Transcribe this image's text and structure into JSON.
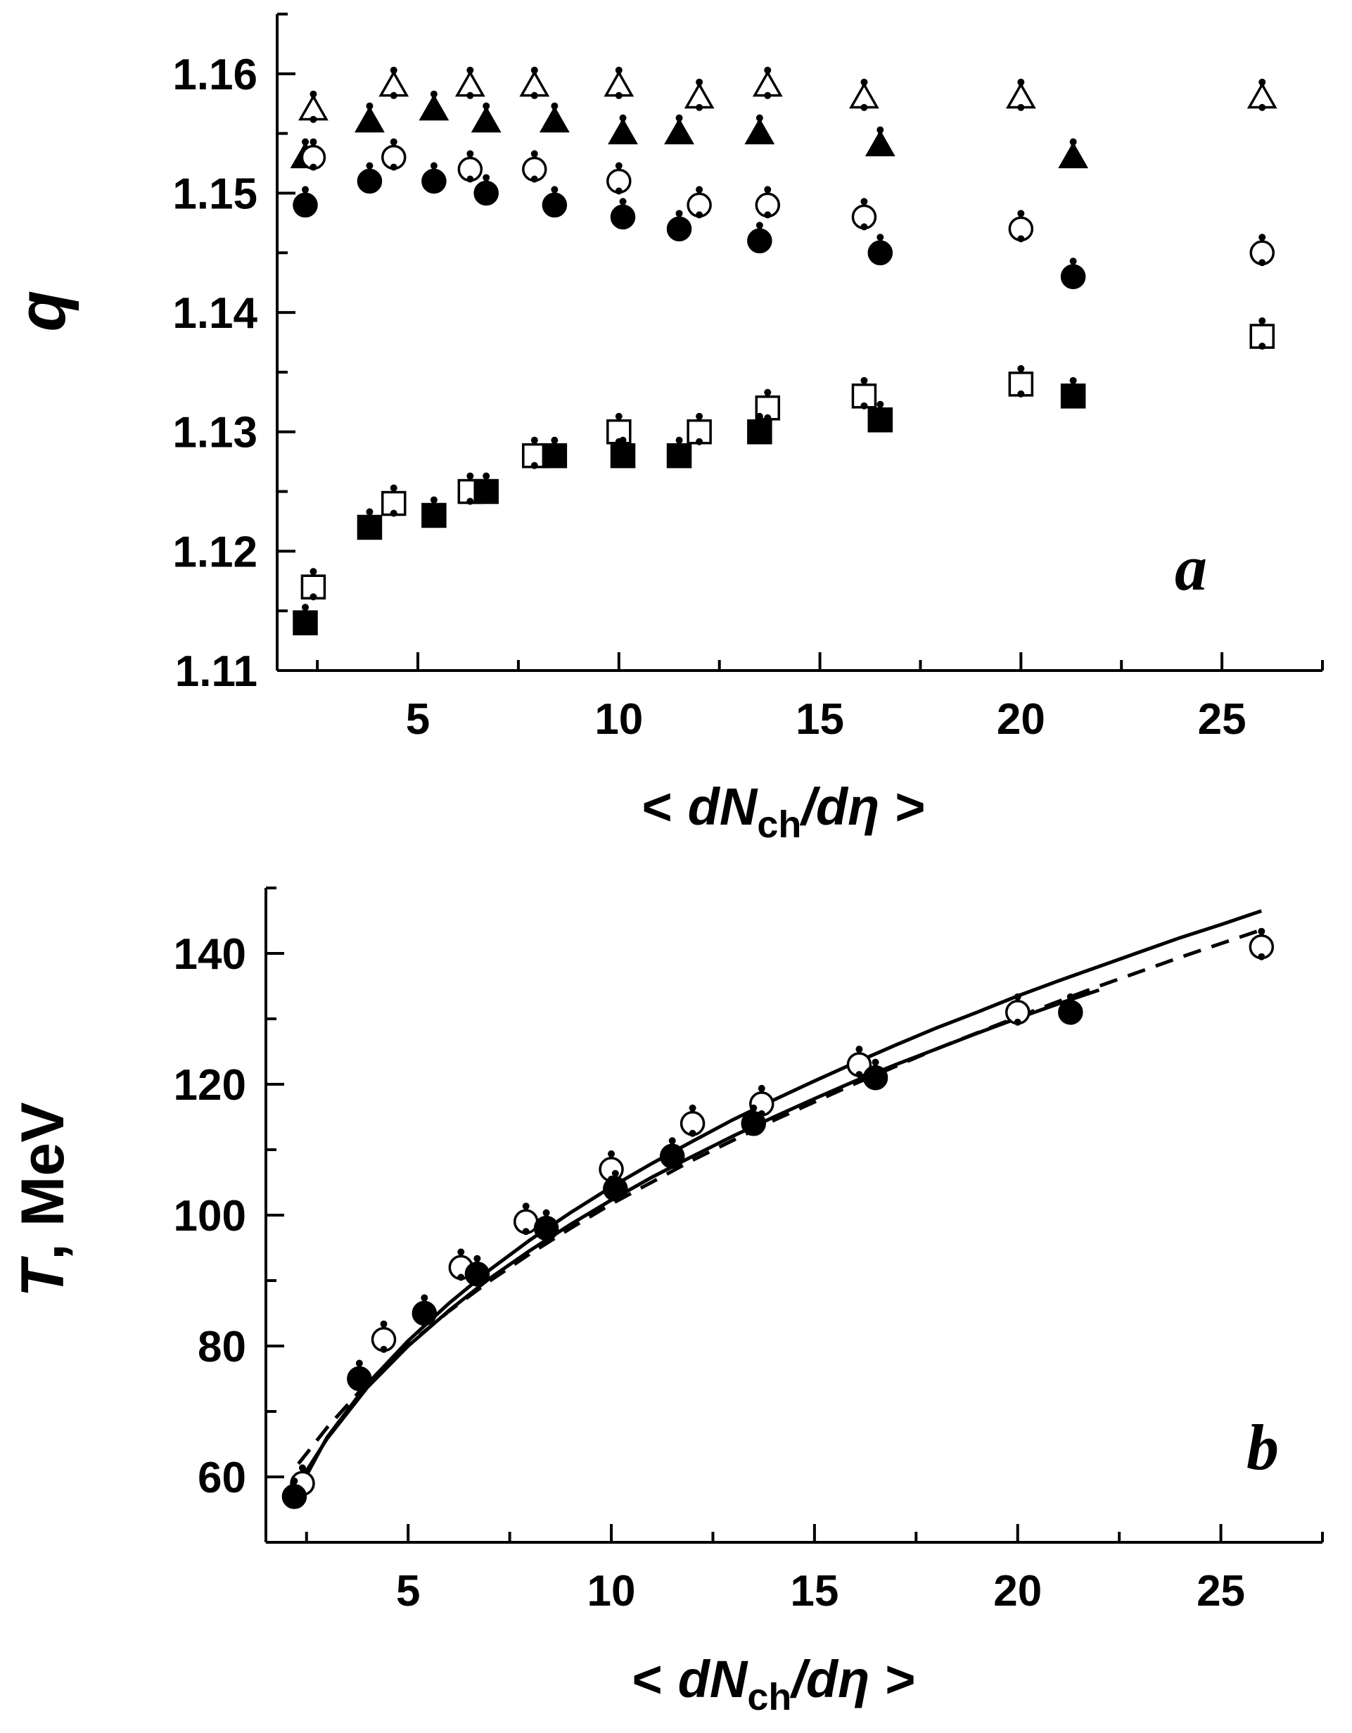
{
  "chart_data": [
    {
      "type": "scatter",
      "panel_label": "a",
      "xlabel": {
        "lt": "<",
        "d1": "d",
        "N": "N",
        "sub": "ch",
        "slash": "/",
        "d2": "d",
        "eta": "η",
        "gt": ">"
      },
      "ylabel": "q",
      "xlim": [
        1.5,
        27.5
      ],
      "ylim": [
        1.11,
        1.165
      ],
      "xticks": [
        "5",
        "10",
        "15",
        "20",
        "25"
      ],
      "yticks": [
        "1.11",
        "1.12",
        "1.13",
        "1.14",
        "1.15",
        "1.16"
      ],
      "series": [
        {
          "name": "open-triangle",
          "marker": "triangle-open",
          "x": [
            2.4,
            4.4,
            6.3,
            7.9,
            10.0,
            12.0,
            13.7,
            16.1,
            20.0,
            26.0
          ],
          "y": [
            1.157,
            1.159,
            1.159,
            1.159,
            1.159,
            1.158,
            1.159,
            1.158,
            1.158,
            1.158
          ]
        },
        {
          "name": "filled-triangle",
          "marker": "triangle-filled",
          "x": [
            2.2,
            3.8,
            5.4,
            6.7,
            8.4,
            10.1,
            11.5,
            13.5,
            16.5,
            21.3
          ],
          "y": [
            1.153,
            1.156,
            1.157,
            1.156,
            1.156,
            1.155,
            1.155,
            1.155,
            1.154,
            1.153
          ]
        },
        {
          "name": "open-circle",
          "marker": "circle-open",
          "x": [
            2.4,
            4.4,
            6.3,
            7.9,
            10.0,
            12.0,
            13.7,
            16.1,
            20.0,
            26.0
          ],
          "y": [
            1.153,
            1.153,
            1.152,
            1.152,
            1.151,
            1.149,
            1.149,
            1.148,
            1.147,
            1.145
          ]
        },
        {
          "name": "filled-circle",
          "marker": "circle-filled",
          "x": [
            2.2,
            3.8,
            5.4,
            6.7,
            8.4,
            10.1,
            11.5,
            13.5,
            16.5,
            21.3
          ],
          "y": [
            1.149,
            1.151,
            1.151,
            1.15,
            1.149,
            1.148,
            1.147,
            1.146,
            1.145,
            1.143
          ]
        },
        {
          "name": "open-square",
          "marker": "square-open",
          "x": [
            2.4,
            4.4,
            6.3,
            7.9,
            10.0,
            12.0,
            13.7,
            16.1,
            20.0,
            26.0
          ],
          "y": [
            1.117,
            1.124,
            1.125,
            1.128,
            1.13,
            1.13,
            1.132,
            1.133,
            1.134,
            1.138
          ]
        },
        {
          "name": "filled-square",
          "marker": "square-filled",
          "x": [
            2.2,
            3.8,
            5.4,
            6.7,
            8.4,
            10.1,
            11.5,
            13.5,
            16.5,
            21.3
          ],
          "y": [
            1.114,
            1.122,
            1.123,
            1.125,
            1.128,
            1.128,
            1.128,
            1.13,
            1.131,
            1.133
          ]
        }
      ]
    },
    {
      "type": "scatter",
      "panel_label": "b",
      "xlabel": {
        "lt": "<",
        "d1": "d",
        "N": "N",
        "sub": "ch",
        "slash": "/",
        "d2": "d",
        "eta": "η",
        "gt": ">"
      },
      "ylabel": {
        "T": "T",
        "rest": ", MeV"
      },
      "xlim": [
        1.5,
        27.5
      ],
      "ylim": [
        50,
        150
      ],
      "xticks": [
        "5",
        "10",
        "15",
        "20",
        "25"
      ],
      "yticks": [
        "60",
        "80",
        "100",
        "120",
        "140"
      ],
      "series": [
        {
          "name": "open-circle",
          "marker": "circle-open",
          "x": [
            2.4,
            4.4,
            6.3,
            7.9,
            10.0,
            12.0,
            13.7,
            16.1,
            20.0,
            26.0
          ],
          "y": [
            59,
            81,
            92,
            99,
            107,
            114,
            117,
            123,
            131,
            141
          ]
        },
        {
          "name": "filled-circle",
          "marker": "circle-filled",
          "x": [
            2.2,
            3.8,
            5.4,
            6.7,
            8.4,
            10.1,
            11.5,
            13.5,
            16.5,
            21.3
          ],
          "y": [
            57,
            75,
            85,
            91,
            98,
            104,
            109,
            114,
            121,
            131
          ]
        }
      ],
      "fits": [
        {
          "name": "solid-fit-open",
          "style": "solid",
          "x": [
            2.4,
            3,
            4,
            5,
            6,
            7,
            8,
            9,
            10,
            11,
            12,
            13,
            14,
            15,
            16,
            17,
            18,
            19,
            20,
            21,
            22,
            23,
            24,
            25,
            26
          ],
          "y": [
            59.1,
            66,
            74.2,
            80.8,
            86.5,
            91.6,
            96.2,
            100.4,
            104.3,
            107.9,
            111.3,
            114.6,
            117.6,
            120.5,
            123.3,
            126,
            128.6,
            131,
            133.5,
            135.8,
            138,
            140.2,
            142.4,
            144.4,
            146.5
          ]
        },
        {
          "name": "solid-fit-filled",
          "style": "solid",
          "x": [
            2.2,
            3,
            4,
            5,
            6,
            7,
            8,
            9,
            10,
            11,
            12,
            13,
            14,
            15,
            16,
            17,
            18,
            19,
            20,
            21,
            22
          ],
          "y": [
            58,
            65.8,
            73.7,
            80,
            85.4,
            90.3,
            94.6,
            98.6,
            102.3,
            105.8,
            109,
            112.1,
            115,
            117.8,
            120.5,
            123,
            125.4,
            127.8,
            130.1,
            132.3,
            134.4
          ]
        },
        {
          "name": "dashed-fit",
          "style": "dashed",
          "x": [
            2.3,
            3,
            4,
            5,
            6,
            7,
            8,
            9,
            10,
            12,
            14,
            16,
            18,
            20,
            22,
            24,
            26
          ],
          "y": [
            62,
            67.5,
            74.4,
            80.2,
            85.3,
            89.9,
            94.1,
            98,
            101.7,
            108.4,
            114.5,
            120.1,
            125.4,
            130.3,
            135,
            139.4,
            143.6
          ]
        }
      ]
    }
  ]
}
